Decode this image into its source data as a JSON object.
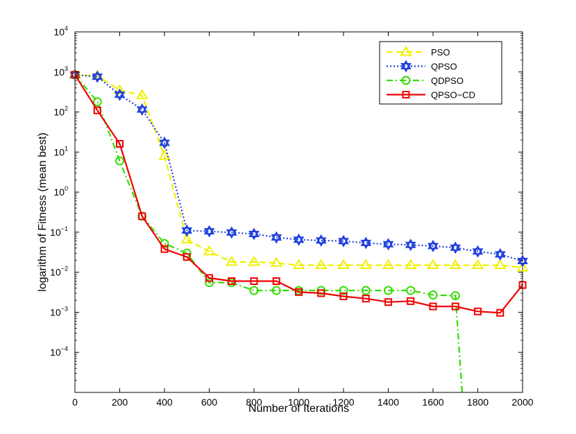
{
  "chart_data": {
    "type": "line",
    "title": "",
    "xlabel": "Number of Iterations",
    "ylabel": "logarithm of Fitness (mean best)",
    "xlim": [
      0,
      2000
    ],
    "ylim_log10": [
      -5,
      4
    ],
    "y_scale": "log",
    "x_ticks": [
      "0",
      "200",
      "400",
      "600",
      "800",
      "1000",
      "1200",
      "1400",
      "1600",
      "1800",
      "2000"
    ],
    "y_tick_base": "10",
    "y_tick_exponents": [
      "4",
      "3",
      "2",
      "1",
      "0",
      "−1",
      "−2",
      "−3",
      "−4"
    ],
    "legend_position": "top-right",
    "series": [
      {
        "name": "PSO",
        "color": "#f0f000",
        "line": "dashed",
        "marker": "triangle",
        "x": [
          0,
          100,
          200,
          300,
          400,
          500,
          600,
          700,
          800,
          900,
          1000,
          1100,
          1200,
          1300,
          1400,
          1500,
          1600,
          1700,
          1800,
          1900,
          2000
        ],
        "values": [
          850,
          800,
          350,
          260,
          8,
          0.065,
          0.033,
          0.018,
          0.018,
          0.017,
          0.015,
          0.015,
          0.015,
          0.015,
          0.015,
          0.015,
          0.015,
          0.015,
          0.015,
          0.015,
          0.013
        ]
      },
      {
        "name": "QPSO",
        "color": "#1f3fdd",
        "line": "dotted",
        "marker": "hexagram",
        "x": [
          0,
          100,
          200,
          300,
          400,
          500,
          600,
          700,
          800,
          900,
          1000,
          1100,
          1200,
          1300,
          1400,
          1500,
          1600,
          1700,
          1800,
          1900,
          2000
        ],
        "values": [
          850,
          760,
          270,
          115,
          17,
          0.11,
          0.105,
          0.098,
          0.09,
          0.074,
          0.065,
          0.062,
          0.06,
          0.054,
          0.05,
          0.048,
          0.045,
          0.041,
          0.033,
          0.028,
          0.019
        ]
      },
      {
        "name": "QDPSO",
        "color": "#33dd00",
        "line": "dashdot",
        "marker": "circle",
        "x": [
          0,
          100,
          200,
          300,
          400,
          500,
          600,
          700,
          800,
          900,
          1000,
          1100,
          1200,
          1300,
          1400,
          1500,
          1600,
          1700
        ],
        "values": [
          850,
          180,
          6,
          0.25,
          0.052,
          0.03,
          0.0055,
          0.0055,
          0.0035,
          0.0035,
          0.0035,
          0.0035,
          0.0035,
          0.0035,
          0.0035,
          0.0035,
          0.0027,
          0.0026
        ],
        "tail_to_bottom_x": 1730
      },
      {
        "name": "QPSO−CD",
        "color": "#ee0000",
        "line": "solid",
        "marker": "square",
        "x": [
          0,
          100,
          200,
          300,
          400,
          500,
          600,
          700,
          800,
          900,
          1000,
          1100,
          1200,
          1300,
          1400,
          1500,
          1600,
          1700,
          1800,
          1900,
          2000
        ],
        "values": [
          850,
          110,
          16,
          0.25,
          0.038,
          0.024,
          0.0072,
          0.006,
          0.006,
          0.006,
          0.0032,
          0.003,
          0.0025,
          0.0022,
          0.0018,
          0.0019,
          0.0014,
          0.0014,
          0.00105,
          0.00097,
          0.0048
        ]
      }
    ]
  }
}
